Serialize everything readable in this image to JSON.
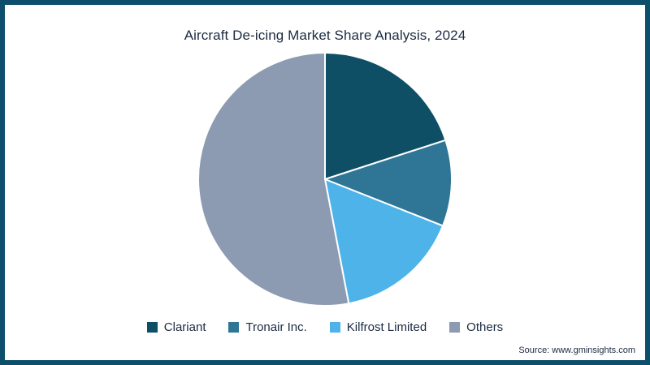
{
  "title": "Aircraft De-icing Market Share Analysis, 2024",
  "source": "Source: www.gminsights.com",
  "frame": {
    "border_color": "#0d4e6b",
    "background": "#ffffff"
  },
  "chart_data": {
    "type": "pie",
    "title": "Aircraft De-icing Market Share Analysis, 2024",
    "categories": [
      "Clariant",
      "Tronair Inc.",
      "Kilfrost Limited",
      "Others"
    ],
    "values": [
      20,
      11,
      16,
      53
    ],
    "colors": [
      "#0e4f66",
      "#2f7696",
      "#4eb3e8",
      "#8c9bb1"
    ],
    "units": "percent",
    "start_angle_deg": 0,
    "direction": "clockwise",
    "slice_separator_color": "#ffffff",
    "value_labels_shown": false,
    "legend_position": "bottom"
  }
}
